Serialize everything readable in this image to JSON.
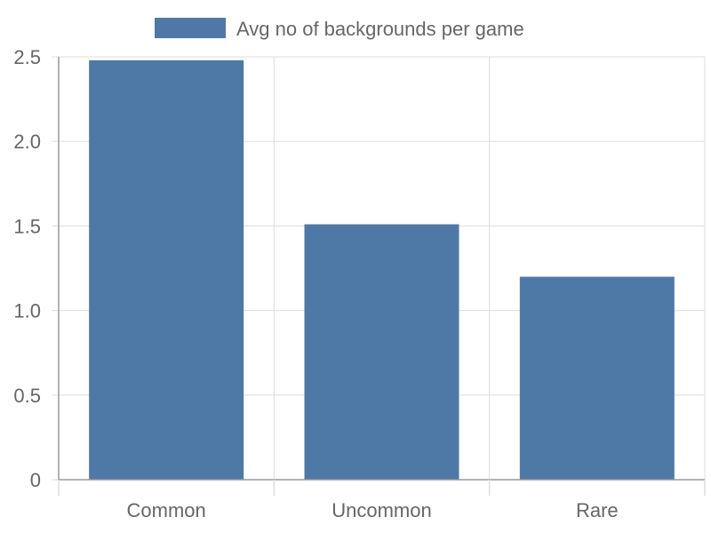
{
  "colors": {
    "bar": "#4e79a7",
    "grid": "#dddddd",
    "axis": "#999999",
    "text": "#666666"
  },
  "chart_data": {
    "type": "bar",
    "categories": [
      "Common",
      "Uncommon",
      "Rare"
    ],
    "series": [
      {
        "name": "Avg no of backgrounds per game",
        "values": [
          2.48,
          1.51,
          1.2
        ]
      }
    ],
    "ylim": [
      0,
      2.5
    ],
    "yticks": [
      "0",
      "0.5",
      "1.0",
      "1.5",
      "2.0",
      "2.5"
    ],
    "legend_position": "top",
    "grid": true,
    "title": "",
    "xlabel": "",
    "ylabel": ""
  }
}
